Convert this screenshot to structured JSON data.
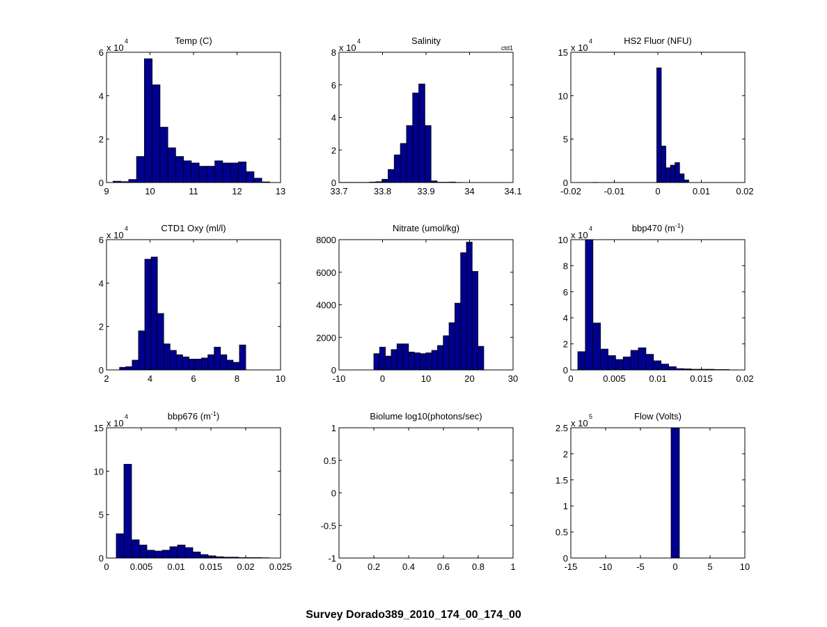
{
  "figure": {
    "title": "Survey Dorado389_2010_174_00_174_00",
    "bar_color": "#00008F"
  },
  "chart_data": [
    {
      "type": "bar",
      "title": "Temp (C)",
      "exponent_label": "x 10",
      "exponent_power": "4",
      "xlim": [
        9,
        13
      ],
      "ylim": [
        0,
        60000
      ],
      "xticks": [
        9,
        10,
        11,
        12,
        13
      ],
      "yticks": [
        0,
        20000,
        40000,
        60000
      ],
      "xtick_labels": [
        "9",
        "10",
        "11",
        "12",
        "13"
      ],
      "ytick_labels": [
        "0",
        "2",
        "4",
        "6"
      ],
      "bin_start": 9.15,
      "bin_width": 0.18,
      "values": [
        600,
        400,
        1400,
        12000,
        57000,
        45000,
        25500,
        16000,
        12000,
        10000,
        9000,
        7500,
        7500,
        10000,
        9000,
        9000,
        9500,
        5000,
        2000,
        300,
        0
      ]
    },
    {
      "type": "bar",
      "title": "Salinity",
      "corner_label": "ctd1",
      "exponent_label": "x 10",
      "exponent_power": "4",
      "xlim": [
        33.7,
        34.1
      ],
      "ylim": [
        0,
        80000
      ],
      "xticks": [
        33.7,
        33.8,
        33.9,
        34.0,
        34.1
      ],
      "yticks": [
        0,
        20000,
        40000,
        60000,
        80000
      ],
      "xtick_labels": [
        "33.7",
        "33.8",
        "33.9",
        "34",
        "34.1"
      ],
      "ytick_labels": [
        "0",
        "2",
        "4",
        "6",
        "8"
      ],
      "bin_start": 33.7,
      "bin_width": 0.0141,
      "values": [
        100,
        100,
        100,
        100,
        100,
        300,
        500,
        2000,
        8000,
        17000,
        24000,
        35000,
        55000,
        60500,
        35000,
        1000,
        200,
        200,
        300,
        100,
        0
      ]
    },
    {
      "type": "bar",
      "title": "HS2 Fluor (NFU)",
      "exponent_label": "x 10",
      "exponent_power": "4",
      "xlim": [
        -0.02,
        0.02
      ],
      "ylim": [
        0,
        150000
      ],
      "xticks": [
        -0.02,
        -0.01,
        0,
        0.01,
        0.02
      ],
      "yticks": [
        0,
        50000,
        100000,
        150000
      ],
      "xtick_labels": [
        "-0.02",
        "-0.01",
        "0",
        "0.01",
        "0.02"
      ],
      "ytick_labels": [
        "0",
        "5",
        "10",
        "15"
      ],
      "bin_start": -0.016,
      "bin_width": 0.00105,
      "values": [
        100,
        200,
        100,
        100,
        100,
        100,
        100,
        100,
        100,
        100,
        100,
        100,
        100,
        100,
        100,
        132000,
        42000,
        17000,
        20000,
        23000,
        10000,
        3000,
        0
      ]
    },
    {
      "type": "bar",
      "title": "CTD1 Oxy (ml/l)",
      "exponent_label": "x 10",
      "exponent_power": "4",
      "xlim": [
        2,
        10
      ],
      "ylim": [
        0,
        60000
      ],
      "xticks": [
        2,
        4,
        6,
        8,
        10
      ],
      "yticks": [
        0,
        20000,
        40000,
        60000
      ],
      "xtick_labels": [
        "2",
        "4",
        "6",
        "8",
        "10"
      ],
      "ytick_labels": [
        "0",
        "2",
        "4",
        "6"
      ],
      "bin_start": 2.6,
      "bin_width": 0.29,
      "values": [
        1200,
        1500,
        4500,
        18000,
        51000,
        52000,
        26000,
        12000,
        9000,
        7000,
        6000,
        5000,
        5000,
        5500,
        7000,
        10500,
        7000,
        4500,
        3500,
        11500
      ]
    },
    {
      "type": "bar",
      "title": "Nitrate (umol/kg)",
      "xlim": [
        -10,
        30
      ],
      "ylim": [
        0,
        8000
      ],
      "xticks": [
        -10,
        0,
        10,
        20,
        30
      ],
      "yticks": [
        0,
        2000,
        4000,
        6000,
        8000
      ],
      "xtick_labels": [
        "-10",
        "0",
        "10",
        "20",
        "30"
      ],
      "ytick_labels": [
        "0",
        "2000",
        "4000",
        "6000",
        "8000"
      ],
      "bin_start": -2,
      "bin_width": 1.33,
      "values": [
        1000,
        1400,
        850,
        1250,
        1600,
        1600,
        1100,
        1050,
        1000,
        1050,
        1200,
        1500,
        2100,
        2900,
        4100,
        7200,
        7850,
        6050,
        1450
      ]
    },
    {
      "type": "bar",
      "title": "bbp470 (m",
      "title_sup": "-1",
      "title_tail": ")",
      "exponent_label": "x 10",
      "exponent_power": "4",
      "xlim": [
        0,
        0.02
      ],
      "ylim": [
        0,
        100000
      ],
      "xticks": [
        0,
        0.005,
        0.01,
        0.015,
        0.02
      ],
      "yticks": [
        0,
        20000,
        40000,
        60000,
        80000,
        100000
      ],
      "xtick_labels": [
        "0",
        "0.005",
        "0.01",
        "0.015",
        "0.02"
      ],
      "ytick_labels": [
        "0",
        "2",
        "4",
        "6",
        "8",
        "10"
      ],
      "bin_start": 0.0008,
      "bin_width": 0.00087,
      "values": [
        14000,
        100000,
        36000,
        16000,
        11000,
        8000,
        10000,
        15000,
        17000,
        12000,
        7000,
        4500,
        2500,
        1000,
        800,
        500,
        500,
        500,
        300,
        300
      ]
    },
    {
      "type": "bar",
      "title": "bbp676 (m",
      "title_sup": "-1",
      "title_tail": ")",
      "exponent_label": "x 10",
      "exponent_power": "4",
      "xlim": [
        0,
        0.025
      ],
      "ylim": [
        0,
        150000
      ],
      "xticks": [
        0,
        0.005,
        0.01,
        0.015,
        0.02,
        0.025
      ],
      "yticks": [
        0,
        50000,
        100000,
        150000
      ],
      "xtick_labels": [
        "0",
        "0.005",
        "0.01",
        "0.015",
        "0.02",
        "0.025"
      ],
      "ytick_labels": [
        "0",
        "5",
        "10",
        "15"
      ],
      "bin_start": 0.0014,
      "bin_width": 0.0011,
      "values": [
        28000,
        108000,
        21000,
        15000,
        9000,
        8000,
        9000,
        13000,
        15000,
        12000,
        7000,
        4000,
        2500,
        1500,
        1000,
        1000,
        500,
        500,
        500,
        300
      ]
    },
    {
      "type": "bar",
      "title": "Biolume log10(photons/sec)",
      "xlim": [
        0,
        1
      ],
      "ylim": [
        -1,
        1
      ],
      "xticks": [
        0,
        0.2,
        0.4,
        0.6,
        0.8,
        1
      ],
      "yticks": [
        -1,
        -0.5,
        0,
        0.5,
        1
      ],
      "xtick_labels": [
        "0",
        "0.2",
        "0.4",
        "0.6",
        "0.8",
        "1"
      ],
      "ytick_labels": [
        "-1",
        "-0.5",
        "0",
        "0.5",
        "1"
      ],
      "values": []
    },
    {
      "type": "bar",
      "title": "Flow (Volts)",
      "exponent_label": "x 10",
      "exponent_power": "5",
      "xlim": [
        -15,
        10
      ],
      "ylim": [
        0,
        250000
      ],
      "xticks": [
        -15,
        -10,
        -5,
        0,
        5,
        10
      ],
      "yticks": [
        0,
        50000,
        100000,
        150000,
        200000,
        250000
      ],
      "xtick_labels": [
        "-15",
        "-10",
        "-5",
        "0",
        "5",
        "10"
      ],
      "ytick_labels": [
        "0",
        "0.5",
        "1",
        "1.5",
        "2",
        "2.5"
      ],
      "bin_start": -0.6,
      "bin_width": 1.2,
      "values": [
        250000
      ]
    }
  ]
}
